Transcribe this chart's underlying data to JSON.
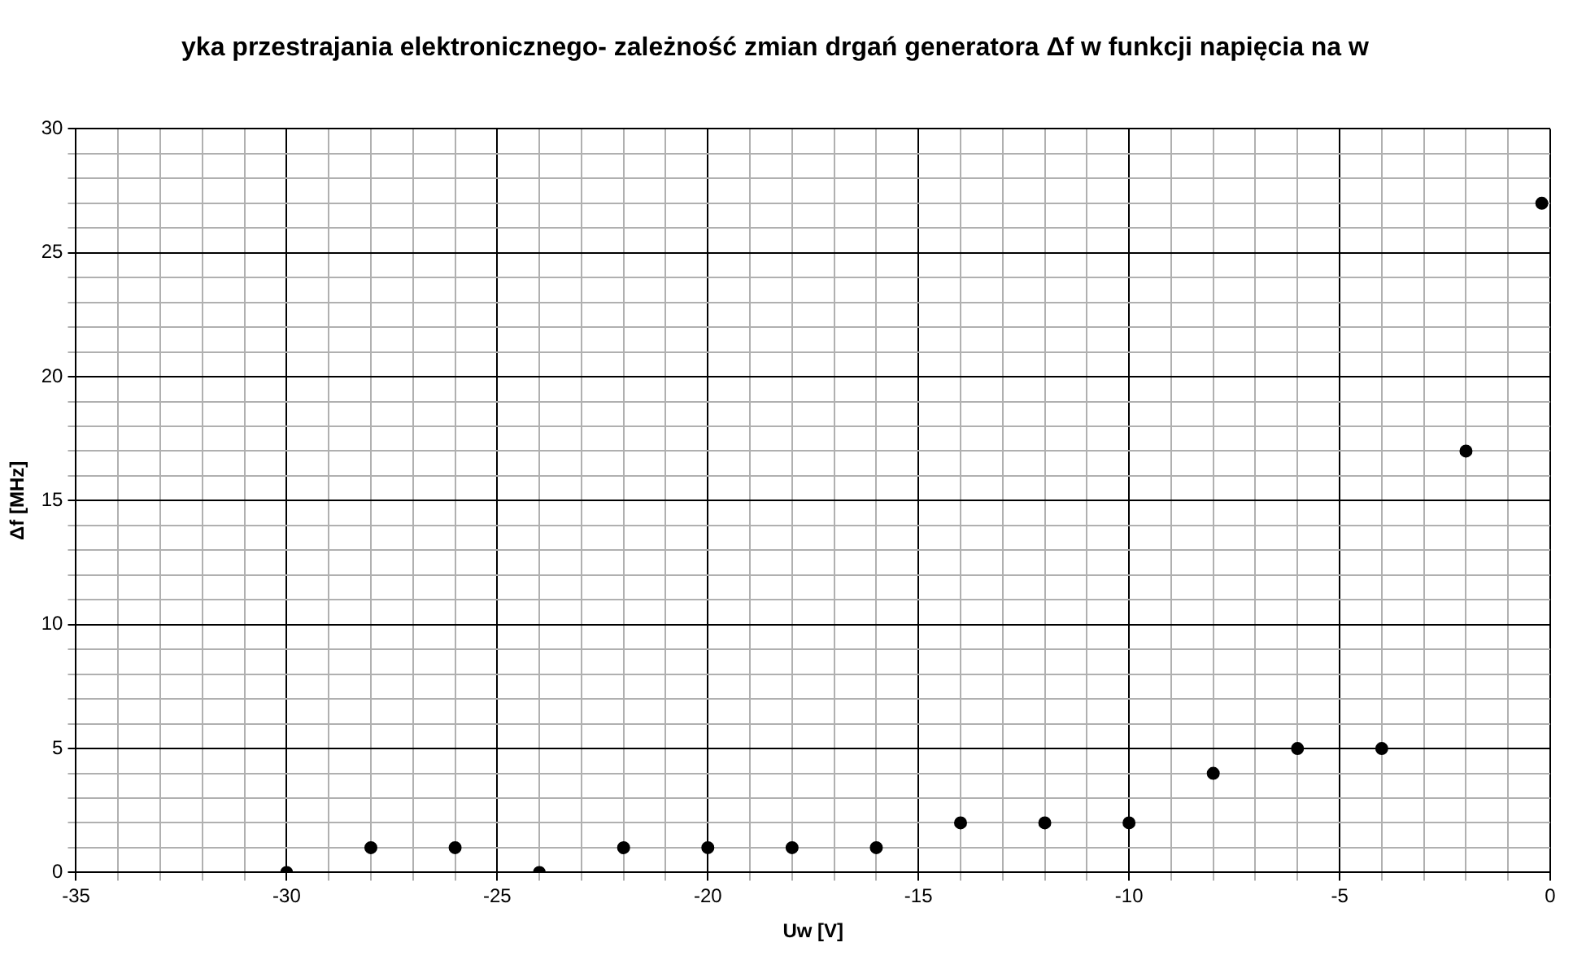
{
  "chart_data": {
    "type": "scatter",
    "title": "yka przestrajania elektronicznego- zależność zmian drgań generatora Δf w funkcji napięcia na w",
    "xlabel": "Uw [V]",
    "ylabel": "Δf [MHz]",
    "x": [
      -30,
      -28,
      -26,
      -24,
      -22,
      -20,
      -18,
      -16,
      -14,
      -12,
      -10,
      -8,
      -6,
      -4,
      -2,
      -0.2
    ],
    "series": [
      {
        "color": "#000000",
        "values": [
          0,
          1,
          1,
          0,
          1,
          1,
          1,
          1,
          2,
          2,
          2,
          4,
          5,
          5,
          17,
          27
        ]
      }
    ],
    "xlim": [
      -35,
      0
    ],
    "xticks": [
      -35,
      {
        "value": -34,
        "label": null
      },
      {
        "value": -33,
        "label": null
      },
      {
        "value": -32,
        "label": null
      },
      {
        "value": -31,
        "label": null
      },
      -30,
      {
        "value": -29,
        "label": null
      },
      {
        "value": -28,
        "label": null
      },
      {
        "value": -27,
        "label": null
      },
      {
        "value": -26,
        "label": null
      },
      -25,
      {
        "value": -24,
        "label": null
      },
      {
        "value": -23,
        "label": null
      },
      {
        "value": -22,
        "label": null
      },
      {
        "value": -21,
        "label": null
      },
      -20,
      {
        "value": -19,
        "label": null
      },
      {
        "value": -18,
        "label": null
      },
      {
        "value": -17,
        "label": null
      },
      {
        "value": -16,
        "label": null
      },
      -15,
      {
        "value": -14,
        "label": null
      },
      {
        "value": -13,
        "label": null
      },
      {
        "value": -12,
        "label": null
      },
      {
        "value": -11,
        "label": null
      },
      -10,
      {
        "value": -9,
        "label": null
      },
      {
        "value": -8,
        "label": null
      },
      {
        "value": -7,
        "label": null
      },
      {
        "value": -6,
        "label": null
      },
      -5,
      {
        "value": -4,
        "label": null
      },
      {
        "value": -3,
        "label": null
      },
      {
        "value": -2,
        "label": null
      },
      {
        "value": -1,
        "label": null
      },
      0
    ],
    "ylim": [
      0,
      30
    ],
    "yticks": [
      0,
      {
        "value": 1,
        "label": null
      },
      {
        "value": 2,
        "label": null
      },
      {
        "value": 3,
        "label": null
      },
      {
        "value": 4,
        "label": null
      },
      5,
      {
        "value": 6,
        "label": null
      },
      {
        "value": 7,
        "label": null
      },
      {
        "value": 8,
        "label": null
      },
      {
        "value": 9,
        "label": null
      },
      10,
      {
        "value": 11,
        "label": null
      },
      {
        "value": 12,
        "label": null
      },
      {
        "value": 13,
        "label": null
      },
      {
        "value": 14,
        "label": null
      },
      15,
      {
        "value": 16,
        "label": null
      },
      {
        "value": 17,
        "label": null
      },
      {
        "value": 18,
        "label": null
      },
      {
        "value": 19,
        "label": null
      },
      20,
      {
        "value": 21,
        "label": null
      },
      {
        "value": 22,
        "label": null
      },
      {
        "value": 23,
        "label": null
      },
      {
        "value": 24,
        "label": null
      },
      25,
      {
        "value": 26,
        "label": null
      },
      {
        "value": 27,
        "label": null
      },
      {
        "value": 28,
        "label": null
      },
      {
        "value": 29,
        "label": null
      },
      30
    ],
    "grid": true,
    "legend": false,
    "marker": "circle"
  }
}
